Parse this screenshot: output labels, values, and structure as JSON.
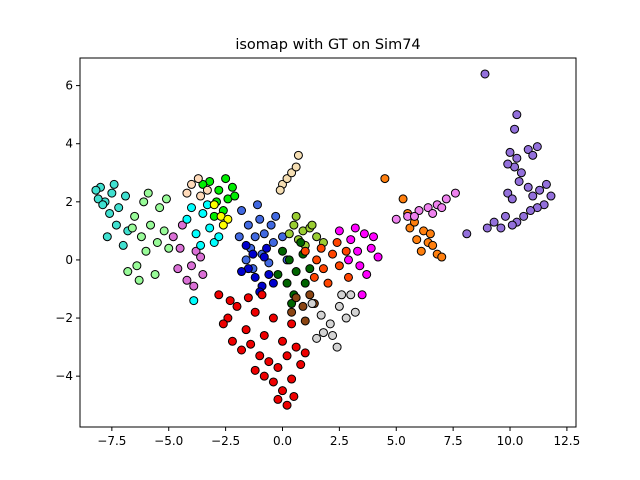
{
  "chart_data": {
    "type": "scatter",
    "title": "isomap with GT on Sim74",
    "xlabel": "",
    "ylabel": "",
    "xlim": [
      -8.9,
      12.9
    ],
    "ylim": [
      -5.75,
      6.95
    ],
    "xticks": [
      -7.5,
      -5.0,
      -2.5,
      0.0,
      2.5,
      5.0,
      7.5,
      10.0,
      12.5
    ],
    "xtick_labels": [
      "−7.5",
      "−5.0",
      "−2.5",
      "0.0",
      "2.5",
      "5.0",
      "7.5",
      "10.0",
      "12.5"
    ],
    "yticks": [
      -4,
      -2,
      0,
      2,
      4,
      6
    ],
    "ytick_labels": [
      "−4",
      "−2",
      "0",
      "2",
      "4",
      "6"
    ],
    "grid": false,
    "legend": false,
    "marker_edge_color": "#000000",
    "series": [
      {
        "color": "#40e0d0",
        "points": [
          [
            -8.0,
            2.5
          ],
          [
            -7.8,
            2.0
          ],
          [
            -7.5,
            2.3
          ],
          [
            -7.2,
            1.8
          ],
          [
            -6.9,
            2.2
          ],
          [
            -7.6,
            1.6
          ],
          [
            -8.1,
            2.1
          ],
          [
            -7.3,
            1.2
          ],
          [
            -7.7,
            0.8
          ],
          [
            -7.0,
            0.5
          ],
          [
            -6.8,
            1.0
          ],
          [
            -7.4,
            2.6
          ],
          [
            -7.9,
            1.9
          ],
          [
            -8.2,
            2.4
          ]
        ]
      },
      {
        "color": "#98fb98",
        "points": [
          [
            -6.5,
            1.5
          ],
          [
            -6.2,
            0.8
          ],
          [
            -5.8,
            1.2
          ],
          [
            -6.0,
            0.3
          ],
          [
            -5.5,
            0.6
          ],
          [
            -6.4,
            -0.2
          ],
          [
            -6.8,
            -0.4
          ],
          [
            -5.2,
            1.0
          ],
          [
            -5.0,
            0.4
          ],
          [
            -5.6,
            -0.5
          ],
          [
            -6.1,
            2.0
          ],
          [
            -5.4,
            1.8
          ],
          [
            -6.6,
            1.1
          ],
          [
            -5.9,
            2.3
          ],
          [
            -5.1,
            2.1
          ],
          [
            -6.3,
            -0.7
          ]
        ]
      },
      {
        "color": "#da70d6",
        "points": [
          [
            -4.5,
            0.4
          ],
          [
            -4.0,
            -0.2
          ],
          [
            -3.8,
            0.3
          ],
          [
            -4.2,
            -0.7
          ],
          [
            -3.5,
            -0.5
          ],
          [
            -4.6,
            -0.3
          ],
          [
            -3.9,
            -0.9
          ],
          [
            -3.6,
            0.1
          ],
          [
            -4.8,
            0.8
          ],
          [
            -4.4,
            1.2
          ]
        ]
      },
      {
        "color": "#00ffff",
        "points": [
          [
            -4.2,
            1.4
          ],
          [
            -3.8,
            0.9
          ],
          [
            -3.5,
            1.6
          ],
          [
            -3.2,
            1.1
          ],
          [
            -3.0,
            0.6
          ],
          [
            -3.6,
            0.5
          ],
          [
            -4.0,
            1.8
          ],
          [
            -3.3,
            1.9
          ],
          [
            -2.8,
            0.8
          ],
          [
            -3.9,
            -1.4
          ]
        ]
      },
      {
        "color": "#00ee00",
        "points": [
          [
            -3.2,
            2.7
          ],
          [
            -2.8,
            2.4
          ],
          [
            -2.5,
            2.8
          ],
          [
            -2.2,
            2.5
          ],
          [
            -2.9,
            2.0
          ],
          [
            -2.4,
            2.1
          ],
          [
            -3.5,
            2.6
          ],
          [
            -2.6,
            1.7
          ],
          [
            -3.0,
            1.5
          ],
          [
            -2.1,
            2.2
          ]
        ]
      },
      {
        "color": "#ffdab9",
        "points": [
          [
            -4.0,
            2.6
          ],
          [
            -3.6,
            2.2
          ],
          [
            -3.7,
            2.8
          ],
          [
            -3.3,
            2.4
          ],
          [
            -4.2,
            2.3
          ]
        ]
      },
      {
        "color": "#ffff00",
        "points": [
          [
            -2.7,
            1.5
          ],
          [
            -2.4,
            1.4
          ],
          [
            -2.6,
            1.2
          ],
          [
            -3.0,
            1.9
          ]
        ]
      },
      {
        "color": "#f5deb3",
        "points": [
          [
            0.0,
            2.6
          ],
          [
            0.2,
            2.8
          ],
          [
            0.4,
            3.0
          ],
          [
            0.6,
            3.2
          ],
          [
            -0.1,
            2.4
          ],
          [
            0.7,
            3.6
          ]
        ]
      },
      {
        "color": "#4169e1",
        "points": [
          [
            -1.8,
            1.7
          ],
          [
            -1.5,
            1.2
          ],
          [
            -1.0,
            1.4
          ],
          [
            -1.2,
            0.8
          ],
          [
            -0.8,
            0.9
          ],
          [
            -0.5,
            1.2
          ],
          [
            -1.4,
            0.4
          ],
          [
            -0.9,
            0.2
          ],
          [
            -0.4,
            0.6
          ],
          [
            -1.9,
            0.8
          ],
          [
            -1.6,
            0.0
          ],
          [
            -0.6,
            -0.1
          ],
          [
            -0.3,
            1.5
          ],
          [
            -1.1,
            1.9
          ],
          [
            0.0,
            0.8
          ],
          [
            -1.3,
            -0.3
          ],
          [
            0.2,
            0.0
          ]
        ]
      },
      {
        "color": "#0000cd",
        "points": [
          [
            -1.5,
            -0.3
          ],
          [
            -1.2,
            -0.6
          ],
          [
            -0.9,
            -0.9
          ],
          [
            -0.6,
            -0.5
          ],
          [
            -1.3,
            0.2
          ],
          [
            -0.8,
            0.1
          ],
          [
            -1.8,
            -0.4
          ],
          [
            -0.4,
            -0.8
          ],
          [
            -1.0,
            -1.1
          ],
          [
            -0.7,
            0.4
          ],
          [
            -1.6,
            0.5
          ]
        ]
      },
      {
        "color": "#9acd32",
        "points": [
          [
            0.5,
            1.2
          ],
          [
            0.9,
            1.0
          ],
          [
            1.2,
            1.1
          ],
          [
            1.5,
            0.8
          ],
          [
            0.7,
            0.7
          ],
          [
            1.0,
            0.5
          ],
          [
            1.8,
            0.6
          ],
          [
            0.3,
            0.9
          ],
          [
            1.3,
            1.2
          ],
          [
            0.6,
            1.5
          ]
        ]
      },
      {
        "color": "#006400",
        "points": [
          [
            0.0,
            0.3
          ],
          [
            0.3,
            0.0
          ],
          [
            0.6,
            -0.4
          ],
          [
            0.9,
            0.2
          ],
          [
            0.2,
            -0.8
          ],
          [
            0.5,
            -1.2
          ],
          [
            1.0,
            -0.8
          ],
          [
            -0.2,
            -0.5
          ],
          [
            1.2,
            -0.3
          ],
          [
            0.8,
            0.6
          ],
          [
            0.4,
            -1.5
          ]
        ]
      },
      {
        "color": "#8b4513",
        "points": [
          [
            0.6,
            -1.3
          ],
          [
            0.9,
            -1.6
          ],
          [
            1.2,
            -1.2
          ],
          [
            0.4,
            -1.8
          ],
          [
            1.0,
            -2.1
          ],
          [
            1.4,
            -1.5
          ]
        ]
      },
      {
        "color": "#d3d3d3",
        "points": [
          [
            1.3,
            -1.5
          ],
          [
            1.7,
            -1.9
          ],
          [
            2.1,
            -2.2
          ],
          [
            2.5,
            -1.6
          ],
          [
            2.8,
            -2.0
          ],
          [
            2.2,
            -2.6
          ],
          [
            1.8,
            -2.5
          ],
          [
            3.0,
            -1.2
          ],
          [
            2.6,
            -1.2
          ],
          [
            1.5,
            -2.7
          ],
          [
            2.4,
            -3.0
          ],
          [
            3.2,
            -1.8
          ]
        ]
      },
      {
        "color": "#ff4500",
        "points": [
          [
            1.0,
            0.3
          ],
          [
            1.5,
            0.0
          ],
          [
            1.8,
            -0.3
          ],
          [
            2.2,
            0.2
          ],
          [
            2.5,
            -0.2
          ],
          [
            1.4,
            -0.6
          ],
          [
            2.0,
            -0.8
          ],
          [
            2.8,
            0.3
          ],
          [
            2.4,
            0.6
          ],
          [
            1.7,
            0.4
          ],
          [
            2.9,
            -0.6
          ]
        ]
      },
      {
        "color": "#ff00ff",
        "points": [
          [
            2.5,
            1.0
          ],
          [
            3.0,
            0.7
          ],
          [
            3.3,
            0.3
          ],
          [
            3.6,
            0.9
          ],
          [
            3.9,
            0.4
          ],
          [
            3.4,
            -0.2
          ],
          [
            2.9,
            0.0
          ],
          [
            4.2,
            0.1
          ],
          [
            3.7,
            -0.5
          ],
          [
            3.2,
            1.1
          ],
          [
            4.0,
            0.8
          ],
          [
            3.5,
            -1.2
          ]
        ]
      },
      {
        "color": "#ee0000",
        "points": [
          [
            -2.8,
            -1.2
          ],
          [
            -2.4,
            -2.0
          ],
          [
            -2.0,
            -1.6
          ],
          [
            -1.6,
            -2.4
          ],
          [
            -1.2,
            -1.8
          ],
          [
            -0.8,
            -2.6
          ],
          [
            -0.4,
            -2.0
          ],
          [
            0.0,
            -2.8
          ],
          [
            0.4,
            -2.2
          ],
          [
            -2.6,
            -2.2
          ],
          [
            -2.2,
            -2.8
          ],
          [
            -1.8,
            -3.1
          ],
          [
            -1.4,
            -2.9
          ],
          [
            -1.0,
            -3.3
          ],
          [
            -0.6,
            -3.5
          ],
          [
            -0.2,
            -3.7
          ],
          [
            0.2,
            -3.3
          ],
          [
            0.6,
            -3.0
          ],
          [
            -1.2,
            -3.8
          ],
          [
            -0.8,
            -4.0
          ],
          [
            -0.4,
            -4.2
          ],
          [
            0.0,
            -4.5
          ],
          [
            0.4,
            -4.1
          ],
          [
            0.8,
            -3.6
          ],
          [
            -0.2,
            -4.8
          ],
          [
            0.2,
            -5.0
          ],
          [
            0.5,
            -4.7
          ],
          [
            1.0,
            -3.2
          ],
          [
            -1.5,
            -1.3
          ],
          [
            -0.9,
            -1.2
          ],
          [
            -2.3,
            -1.4
          ]
        ]
      },
      {
        "color": "#ff7f0e",
        "points": [
          [
            5.3,
            2.1
          ],
          [
            5.5,
            1.6
          ],
          [
            5.6,
            1.1
          ],
          [
            5.9,
            0.7
          ],
          [
            6.1,
            0.3
          ],
          [
            6.4,
            0.6
          ],
          [
            6.8,
            0.2
          ],
          [
            6.2,
            1.0
          ],
          [
            6.6,
            0.5
          ],
          [
            7.0,
            0.1
          ],
          [
            5.8,
            1.3
          ],
          [
            6.5,
            0.9
          ],
          [
            4.5,
            2.8
          ]
        ]
      },
      {
        "color": "#ee82ee",
        "points": [
          [
            5.0,
            1.4
          ],
          [
            5.5,
            1.5
          ],
          [
            6.0,
            1.7
          ],
          [
            6.4,
            1.8
          ],
          [
            6.8,
            1.9
          ],
          [
            7.2,
            2.1
          ],
          [
            7.6,
            2.3
          ],
          [
            5.8,
            1.5
          ],
          [
            6.6,
            1.6
          ],
          [
            7.0,
            1.8
          ]
        ]
      },
      {
        "color": "#9370db",
        "points": [
          [
            8.9,
            6.4
          ],
          [
            10.3,
            5.0
          ],
          [
            10.2,
            4.5
          ],
          [
            10.0,
            3.7
          ],
          [
            10.3,
            3.5
          ],
          [
            10.2,
            3.2
          ],
          [
            9.9,
            3.3
          ],
          [
            10.5,
            3.0
          ],
          [
            10.4,
            2.7
          ],
          [
            10.8,
            3.8
          ],
          [
            11.0,
            3.6
          ],
          [
            11.2,
            3.9
          ],
          [
            10.8,
            2.5
          ],
          [
            11.0,
            2.2
          ],
          [
            11.3,
            2.4
          ],
          [
            11.6,
            2.6
          ],
          [
            11.8,
            2.2
          ],
          [
            11.5,
            1.9
          ],
          [
            11.2,
            1.8
          ],
          [
            10.9,
            1.7
          ],
          [
            10.6,
            1.5
          ],
          [
            10.3,
            1.3
          ],
          [
            10.1,
            1.2
          ],
          [
            9.8,
            1.5
          ],
          [
            9.6,
            1.1
          ],
          [
            9.3,
            1.3
          ],
          [
            9.0,
            1.1
          ],
          [
            9.9,
            2.3
          ],
          [
            10.1,
            2.1
          ],
          [
            8.1,
            0.9
          ]
        ]
      }
    ]
  }
}
